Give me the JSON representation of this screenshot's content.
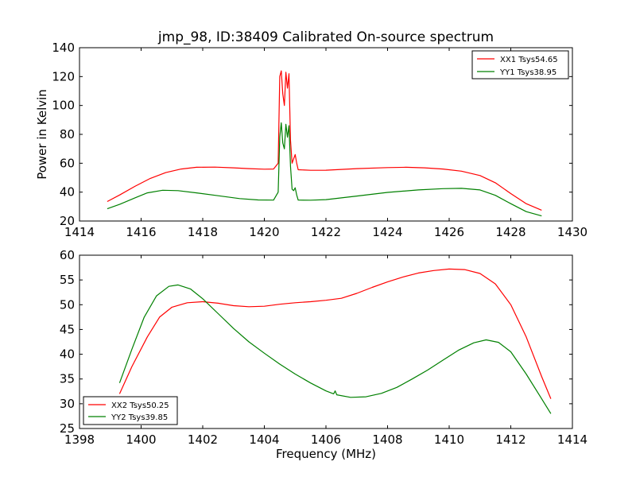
{
  "chart_data": [
    {
      "type": "line",
      "title": "jmp_98, ID:38409 Calibrated On-source spectrum",
      "xlabel": "",
      "ylabel": "Power in Kelvin",
      "xlim": [
        1414,
        1430
      ],
      "ylim": [
        20,
        140
      ],
      "xticks": [
        "1414",
        "1416",
        "1418",
        "1420",
        "1422",
        "1424",
        "1426",
        "1428",
        "1430"
      ],
      "yticks": [
        "20",
        "40",
        "60",
        "80",
        "100",
        "120",
        "140"
      ],
      "legend_position": "top-right",
      "grid": false,
      "series": [
        {
          "name": "XX1 Tsys54.65",
          "color": "#ff0000",
          "points": [
            [
              1414.9,
              33.5
            ],
            [
              1415.3,
              38
            ],
            [
              1415.8,
              44
            ],
            [
              1416.3,
              49.5
            ],
            [
              1416.8,
              53.5
            ],
            [
              1417.3,
              56
            ],
            [
              1417.8,
              57.2
            ],
            [
              1418.4,
              57.3
            ],
            [
              1419.0,
              56.8
            ],
            [
              1419.5,
              56.3
            ],
            [
              1420.0,
              55.9
            ],
            [
              1420.3,
              56
            ],
            [
              1420.45,
              60
            ],
            [
              1420.5,
              120
            ],
            [
              1420.55,
              124
            ],
            [
              1420.6,
              108
            ],
            [
              1420.65,
              100
            ],
            [
              1420.7,
              123
            ],
            [
              1420.75,
              112
            ],
            [
              1420.8,
              122
            ],
            [
              1420.85,
              76
            ],
            [
              1420.9,
              60
            ],
            [
              1420.95,
              63
            ],
            [
              1421.0,
              66
            ],
            [
              1421.05,
              60
            ],
            [
              1421.1,
              55.5
            ],
            [
              1421.5,
              55.1
            ],
            [
              1422.0,
              55.2
            ],
            [
              1423.0,
              56.3
            ],
            [
              1424.0,
              57
            ],
            [
              1424.6,
              57.2
            ],
            [
              1425.2,
              56.8
            ],
            [
              1425.8,
              56
            ],
            [
              1426.4,
              54.5
            ],
            [
              1427.0,
              51.5
            ],
            [
              1427.5,
              46.5
            ],
            [
              1428.0,
              39
            ],
            [
              1428.5,
              32
            ],
            [
              1429.0,
              27.5
            ]
          ]
        },
        {
          "name": "YY1 Tsys38.95",
          "color": "#008000",
          "points": [
            [
              1414.9,
              28.5
            ],
            [
              1415.3,
              31.5
            ],
            [
              1415.8,
              36
            ],
            [
              1416.2,
              39.5
            ],
            [
              1416.7,
              41.3
            ],
            [
              1417.2,
              41
            ],
            [
              1417.8,
              39.5
            ],
            [
              1418.5,
              37.5
            ],
            [
              1419.2,
              35.5
            ],
            [
              1419.8,
              34.6
            ],
            [
              1420.3,
              34.5
            ],
            [
              1420.45,
              40
            ],
            [
              1420.5,
              78
            ],
            [
              1420.55,
              88
            ],
            [
              1420.6,
              74
            ],
            [
              1420.65,
              70
            ],
            [
              1420.7,
              87
            ],
            [
              1420.75,
              78
            ],
            [
              1420.8,
              86
            ],
            [
              1420.85,
              58
            ],
            [
              1420.9,
              42
            ],
            [
              1420.95,
              41
            ],
            [
              1421.0,
              43
            ],
            [
              1421.05,
              38
            ],
            [
              1421.1,
              34.5
            ],
            [
              1421.5,
              34.4
            ],
            [
              1422.0,
              34.8
            ],
            [
              1423.0,
              37.3
            ],
            [
              1424.0,
              39.8
            ],
            [
              1425.0,
              41.5
            ],
            [
              1425.8,
              42.4
            ],
            [
              1426.4,
              42.6
            ],
            [
              1427.0,
              41.5
            ],
            [
              1427.5,
              37.8
            ],
            [
              1428.0,
              32
            ],
            [
              1428.5,
              26.5
            ],
            [
              1429.0,
              23.5
            ]
          ]
        }
      ]
    },
    {
      "type": "line",
      "title": "",
      "xlabel": "Frequency (MHz)",
      "ylabel": "",
      "xlim": [
        1398,
        1414
      ],
      "ylim": [
        25,
        60
      ],
      "xticks": [
        "1398",
        "1400",
        "1402",
        "1404",
        "1406",
        "1408",
        "1410",
        "1412",
        "1414"
      ],
      "yticks": [
        "25",
        "30",
        "35",
        "40",
        "45",
        "50",
        "55",
        "60"
      ],
      "legend_position": "bottom-left",
      "grid": false,
      "series": [
        {
          "name": "XX2 Tsys50.25",
          "color": "#ff0000",
          "points": [
            [
              1399.3,
              32
            ],
            [
              1399.7,
              37.5
            ],
            [
              1400.2,
              43.5
            ],
            [
              1400.6,
              47.5
            ],
            [
              1401.0,
              49.5
            ],
            [
              1401.5,
              50.4
            ],
            [
              1402.0,
              50.6
            ],
            [
              1402.5,
              50.3
            ],
            [
              1403.0,
              49.8
            ],
            [
              1403.5,
              49.6
            ],
            [
              1404.0,
              49.7
            ],
            [
              1404.5,
              50.1
            ],
            [
              1405.0,
              50.4
            ],
            [
              1405.5,
              50.6
            ],
            [
              1406.0,
              50.9
            ],
            [
              1406.5,
              51.3
            ],
            [
              1407.0,
              52.3
            ],
            [
              1407.5,
              53.5
            ],
            [
              1408.0,
              54.6
            ],
            [
              1408.5,
              55.6
            ],
            [
              1409.0,
              56.4
            ],
            [
              1409.5,
              56.9
            ],
            [
              1410.0,
              57.2
            ],
            [
              1410.5,
              57.1
            ],
            [
              1411.0,
              56.3
            ],
            [
              1411.5,
              54.2
            ],
            [
              1412.0,
              50
            ],
            [
              1412.5,
              43.5
            ],
            [
              1413.0,
              35.5
            ],
            [
              1413.3,
              31
            ]
          ]
        },
        {
          "name": "YY2 Tsys39.85",
          "color": "#008000",
          "points": [
            [
              1399.3,
              34.2
            ],
            [
              1399.7,
              41
            ],
            [
              1400.1,
              47.5
            ],
            [
              1400.5,
              51.8
            ],
            [
              1400.9,
              53.7
            ],
            [
              1401.2,
              54
            ],
            [
              1401.6,
              53.2
            ],
            [
              1402.0,
              51.2
            ],
            [
              1402.5,
              48.2
            ],
            [
              1403.0,
              45.2
            ],
            [
              1403.5,
              42.5
            ],
            [
              1404.0,
              40.2
            ],
            [
              1404.5,
              38
            ],
            [
              1405.0,
              36
            ],
            [
              1405.5,
              34.2
            ],
            [
              1406.0,
              32.6
            ],
            [
              1406.25,
              32
            ],
            [
              1406.3,
              32.6
            ],
            [
              1406.35,
              31.8
            ],
            [
              1406.8,
              31.3
            ],
            [
              1407.3,
              31.4
            ],
            [
              1407.8,
              32.1
            ],
            [
              1408.3,
              33.3
            ],
            [
              1408.8,
              35
            ],
            [
              1409.3,
              36.8
            ],
            [
              1409.8,
              38.8
            ],
            [
              1410.3,
              40.8
            ],
            [
              1410.8,
              42.3
            ],
            [
              1411.2,
              42.9
            ],
            [
              1411.6,
              42.4
            ],
            [
              1412.0,
              40.5
            ],
            [
              1412.5,
              36
            ],
            [
              1413.0,
              31
            ],
            [
              1413.3,
              28
            ]
          ]
        }
      ]
    }
  ]
}
